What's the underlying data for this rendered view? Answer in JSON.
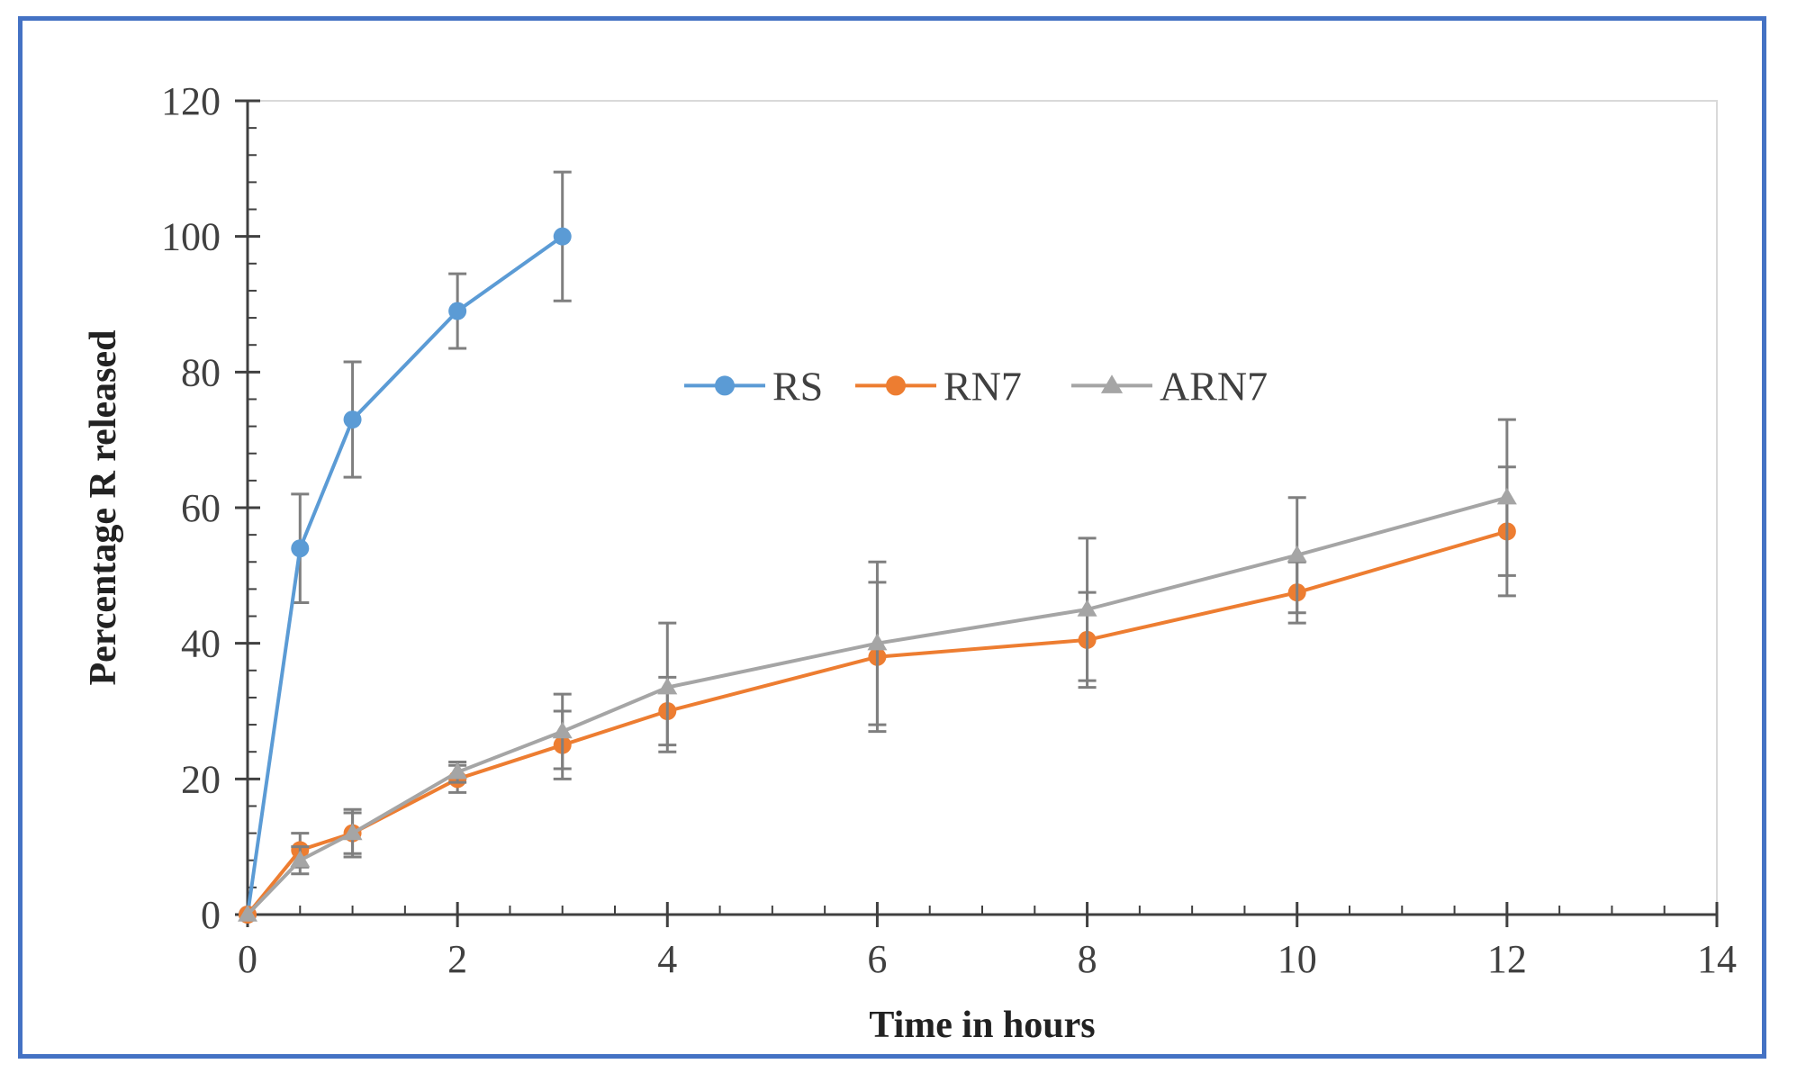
{
  "chart_data": {
    "type": "line",
    "title": "",
    "xlabel": "Time in hours",
    "ylabel": "Percentage R released",
    "xlim": [
      0,
      14
    ],
    "ylim": [
      0,
      120
    ],
    "xticks": [
      "0",
      "2",
      "4",
      "6",
      "8",
      "10",
      "12",
      "14"
    ],
    "yticks": [
      "0",
      "20",
      "40",
      "60",
      "80",
      "100",
      "120"
    ],
    "grid": false,
    "legend_position": "center",
    "series": [
      {
        "name": "RS",
        "color": "#5b9bd5",
        "marker": "circle",
        "x": [
          0,
          0.5,
          1,
          2,
          3
        ],
        "values": [
          0,
          54,
          73,
          89,
          100
        ],
        "errors": [
          0,
          8,
          8.5,
          5.5,
          9.5
        ]
      },
      {
        "name": "RN7",
        "color": "#ed7d31",
        "marker": "circle",
        "x": [
          0,
          0.5,
          1,
          2,
          3,
          4,
          6,
          8,
          10,
          12
        ],
        "values": [
          0,
          9.5,
          12,
          20,
          25,
          30,
          38,
          40.5,
          47.5,
          56.5
        ],
        "errors": [
          0,
          2.5,
          3,
          2,
          5,
          5,
          11,
          7,
          4.5,
          9.5
        ]
      },
      {
        "name": "ARN7",
        "color": "#a5a5a5",
        "marker": "triangle",
        "x": [
          0,
          0.5,
          1,
          2,
          3,
          4,
          6,
          8,
          10,
          12
        ],
        "values": [
          0,
          8,
          12,
          21,
          27,
          33.5,
          40,
          45,
          53,
          61.5
        ],
        "errors": [
          0,
          2,
          3.5,
          1.5,
          5.5,
          9.5,
          12,
          10.5,
          8.5,
          11.5
        ]
      }
    ]
  }
}
